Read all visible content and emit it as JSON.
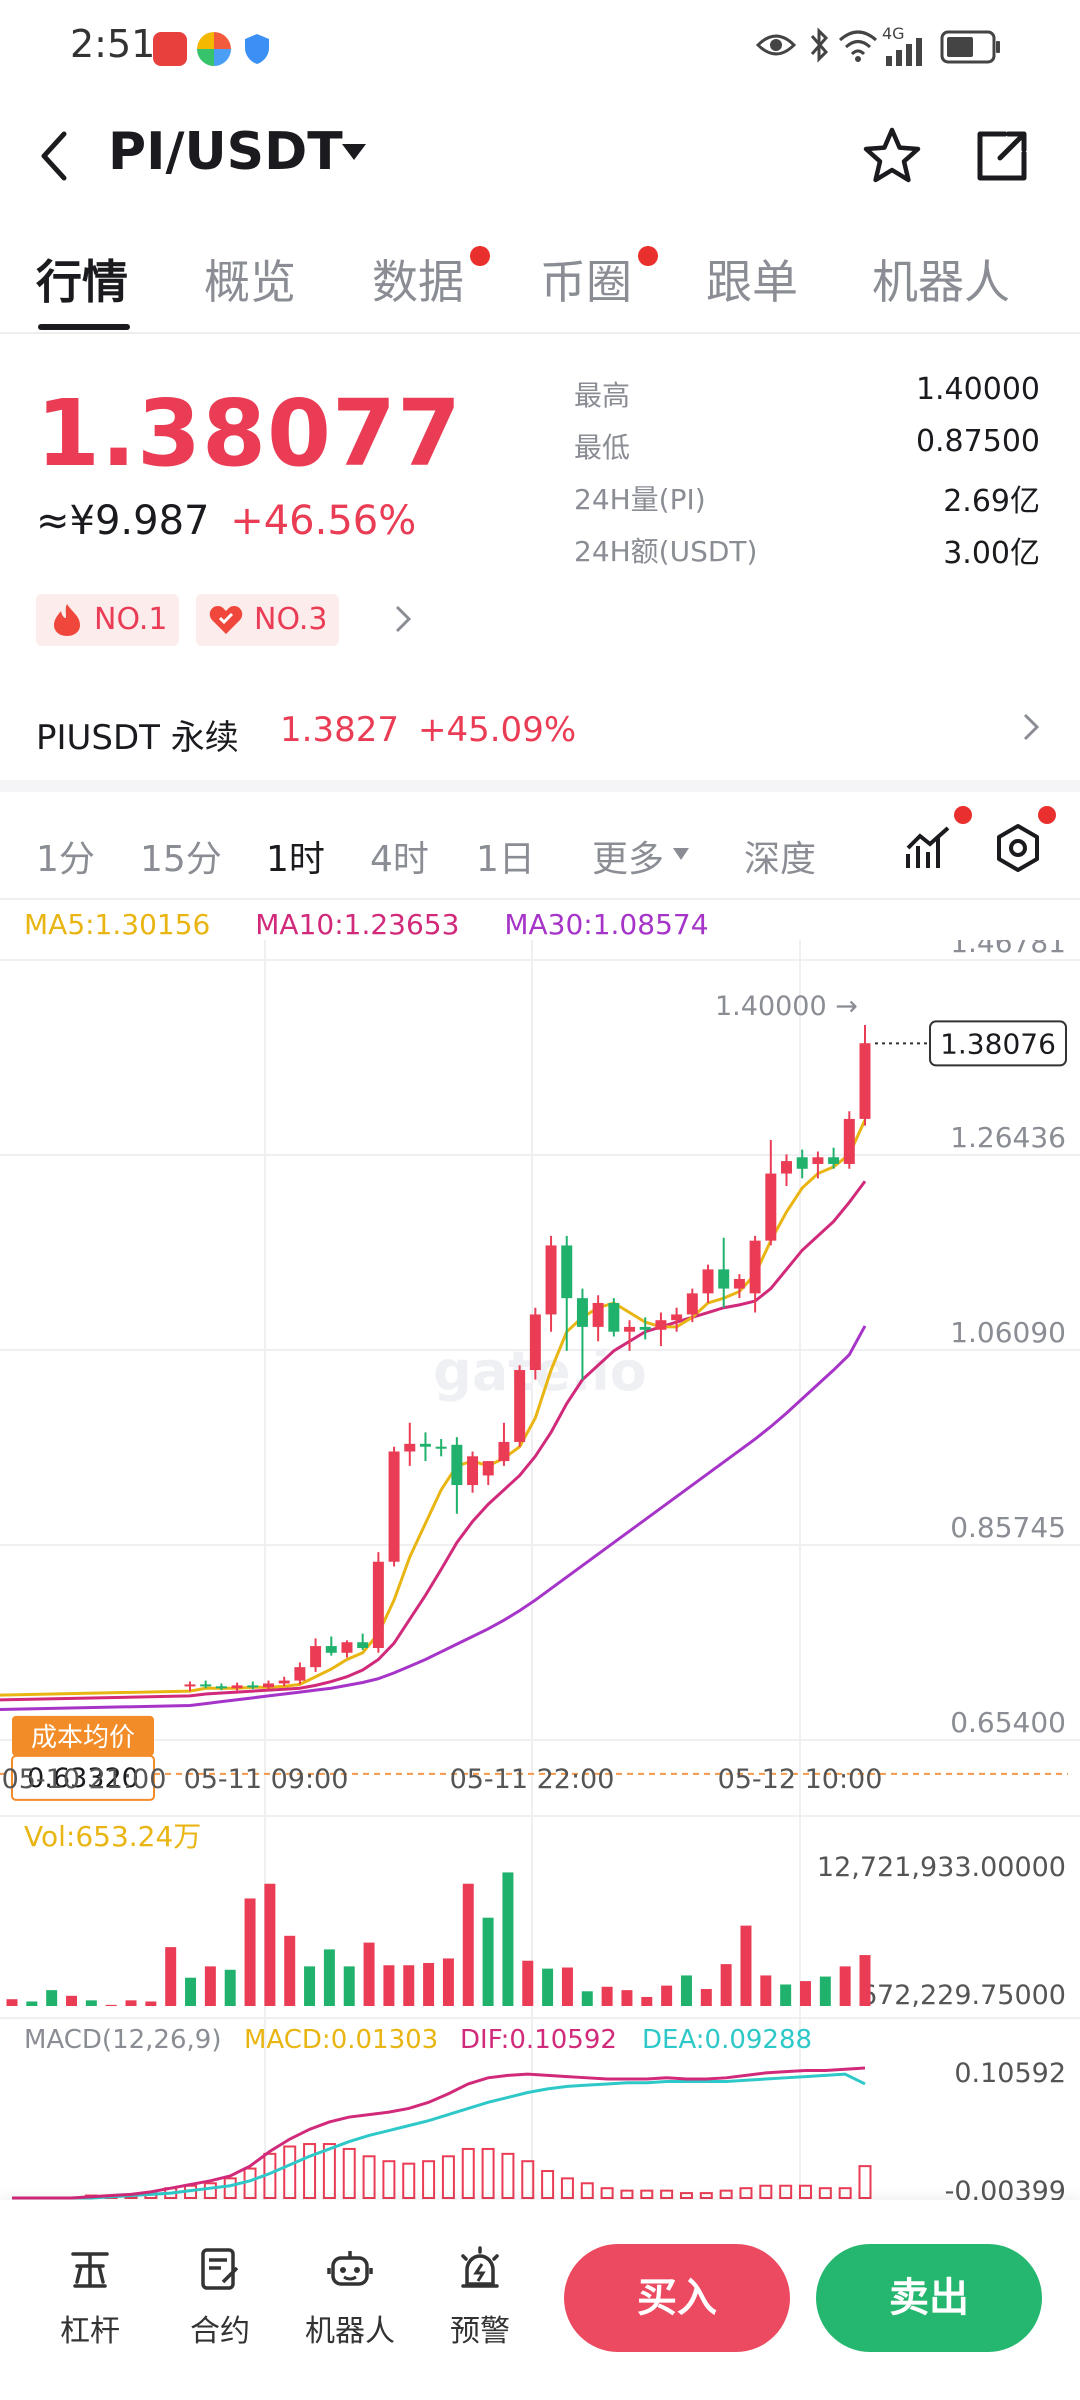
{
  "status_bar": {
    "time": "2:51",
    "network": "4G"
  },
  "header": {
    "pair": "PI/USDT"
  },
  "tabs": [
    {
      "label": "行情",
      "active": true,
      "dot": false
    },
    {
      "label": "概览",
      "active": false,
      "dot": false
    },
    {
      "label": "数据",
      "active": false,
      "dot": true
    },
    {
      "label": "币圈",
      "active": false,
      "dot": true
    },
    {
      "label": "跟单",
      "active": false,
      "dot": false
    },
    {
      "label": "机器人",
      "active": false,
      "dot": false
    }
  ],
  "price": {
    "last": "1.38077",
    "fiat": "≈¥9.987",
    "change": "+46.56%",
    "badges": [
      "NO.1",
      "NO.3"
    ]
  },
  "stats": [
    {
      "label": "最高",
      "value": "1.40000"
    },
    {
      "label": "最低",
      "value": "0.87500"
    },
    {
      "label": "24H量(PI)",
      "value": "2.69亿"
    },
    {
      "label": "24H额(USDT)",
      "value": "3.00亿"
    }
  ],
  "perpetual": {
    "name": "PIUSDT 永续",
    "price": "1.3827",
    "change": "+45.09%"
  },
  "intervals": [
    {
      "label": "1分",
      "active": false
    },
    {
      "label": "15分",
      "active": false
    },
    {
      "label": "1时",
      "active": true
    },
    {
      "label": "4时",
      "active": false
    },
    {
      "label": "1日",
      "active": false
    },
    {
      "label": "更多",
      "active": false
    },
    {
      "label": "深度",
      "active": false
    }
  ],
  "ma_legend": {
    "ma5": "MA5:1.30156",
    "ma10": "MA10:1.23653",
    "ma30": "MA30:1.08574"
  },
  "colors": {
    "up": "#ea3d55",
    "down": "#20b26c",
    "ma5": "#e9b513",
    "ma10": "#d12a7a",
    "ma30": "#a634c8",
    "dif": "#d12a7a",
    "dea": "#2ec8c8"
  },
  "chart_data": {
    "type": "candlestick",
    "interval": "1时",
    "ylim": [
      0.654,
      1.46781
    ],
    "y_ticks": [
      "1.46781",
      "1.26436",
      "1.06090",
      "0.85745",
      "0.65400"
    ],
    "x_ticks": [
      "05-10 21:00",
      "05-11 09:00",
      "05-11 22:00",
      "05-12 10:00"
    ],
    "high_marker": "1.40000",
    "last_price_tag": "1.38076",
    "cost_label": "成本均价",
    "cost_value": "0.63320",
    "cost_partial": "76",
    "watermark": "gate.io",
    "candles": [
      {
        "o": 0.71,
        "h": 0.715,
        "l": 0.705,
        "c": 0.712
      },
      {
        "o": 0.712,
        "h": 0.716,
        "l": 0.708,
        "c": 0.71
      },
      {
        "o": 0.71,
        "h": 0.713,
        "l": 0.706,
        "c": 0.708
      },
      {
        "o": 0.708,
        "h": 0.714,
        "l": 0.705,
        "c": 0.711
      },
      {
        "o": 0.711,
        "h": 0.715,
        "l": 0.707,
        "c": 0.709
      },
      {
        "o": 0.709,
        "h": 0.716,
        "l": 0.706,
        "c": 0.713
      },
      {
        "o": 0.713,
        "h": 0.72,
        "l": 0.71,
        "c": 0.716
      },
      {
        "o": 0.716,
        "h": 0.735,
        "l": 0.712,
        "c": 0.73
      },
      {
        "o": 0.73,
        "h": 0.76,
        "l": 0.725,
        "c": 0.752
      },
      {
        "o": 0.752,
        "h": 0.762,
        "l": 0.742,
        "c": 0.745
      },
      {
        "o": 0.745,
        "h": 0.758,
        "l": 0.74,
        "c": 0.756
      },
      {
        "o": 0.756,
        "h": 0.765,
        "l": 0.748,
        "c": 0.75
      },
      {
        "o": 0.75,
        "h": 0.85,
        "l": 0.745,
        "c": 0.84
      },
      {
        "o": 0.84,
        "h": 0.96,
        "l": 0.835,
        "c": 0.955
      },
      {
        "o": 0.955,
        "h": 0.985,
        "l": 0.94,
        "c": 0.963
      },
      {
        "o": 0.963,
        "h": 0.975,
        "l": 0.945,
        "c": 0.96
      },
      {
        "o": 0.96,
        "h": 0.968,
        "l": 0.95,
        "c": 0.958
      },
      {
        "o": 0.962,
        "h": 0.97,
        "l": 0.89,
        "c": 0.92
      },
      {
        "o": 0.92,
        "h": 0.955,
        "l": 0.912,
        "c": 0.95
      },
      {
        "o": 0.93,
        "h": 0.945,
        "l": 0.92,
        "c": 0.945
      },
      {
        "o": 0.945,
        "h": 0.985,
        "l": 0.94,
        "c": 0.965
      },
      {
        "o": 0.965,
        "h": 1.045,
        "l": 0.96,
        "c": 1.04
      },
      {
        "o": 1.04,
        "h": 1.105,
        "l": 1.03,
        "c": 1.098
      },
      {
        "o": 1.098,
        "h": 1.18,
        "l": 1.08,
        "c": 1.17
      },
      {
        "o": 1.17,
        "h": 1.18,
        "l": 1.06,
        "c": 1.115
      },
      {
        "o": 1.115,
        "h": 1.125,
        "l": 1.03,
        "c": 1.085
      },
      {
        "o": 1.085,
        "h": 1.118,
        "l": 1.07,
        "c": 1.11
      },
      {
        "o": 1.11,
        "h": 1.115,
        "l": 1.075,
        "c": 1.08
      },
      {
        "o": 1.08,
        "h": 1.092,
        "l": 1.06,
        "c": 1.085
      },
      {
        "o": 1.085,
        "h": 1.095,
        "l": 1.072,
        "c": 1.082
      },
      {
        "o": 1.082,
        "h": 1.1,
        "l": 1.065,
        "c": 1.092
      },
      {
        "o": 1.092,
        "h": 1.105,
        "l": 1.08,
        "c": 1.098
      },
      {
        "o": 1.098,
        "h": 1.125,
        "l": 1.09,
        "c": 1.12
      },
      {
        "o": 1.12,
        "h": 1.15,
        "l": 1.11,
        "c": 1.145
      },
      {
        "o": 1.145,
        "h": 1.178,
        "l": 1.105,
        "c": 1.125
      },
      {
        "o": 1.125,
        "h": 1.14,
        "l": 1.115,
        "c": 1.135
      },
      {
        "o": 1.12,
        "h": 1.18,
        "l": 1.1,
        "c": 1.175
      },
      {
        "o": 1.175,
        "h": 1.28,
        "l": 1.17,
        "c": 1.245
      },
      {
        "o": 1.245,
        "h": 1.265,
        "l": 1.232,
        "c": 1.258
      },
      {
        "o": 1.262,
        "h": 1.27,
        "l": 1.24,
        "c": 1.25
      },
      {
        "o": 1.255,
        "h": 1.268,
        "l": 1.24,
        "c": 1.262
      },
      {
        "o": 1.262,
        "h": 1.272,
        "l": 1.25,
        "c": 1.255
      },
      {
        "o": 1.255,
        "h": 1.31,
        "l": 1.25,
        "c": 1.302
      },
      {
        "o": 1.302,
        "h": 1.4,
        "l": 1.295,
        "c": 1.381
      }
    ],
    "ma5_points": [
      0.705,
      0.708,
      0.708,
      0.708,
      0.709,
      0.709,
      0.71,
      0.712,
      0.72,
      0.728,
      0.738,
      0.745,
      0.765,
      0.8,
      0.845,
      0.88,
      0.915,
      0.94,
      0.945,
      0.94,
      0.948,
      0.96,
      0.99,
      1.04,
      1.08,
      1.095,
      1.105,
      1.11,
      1.1,
      1.09,
      1.085,
      1.085,
      1.095,
      1.11,
      1.115,
      1.122,
      1.14,
      1.175,
      1.205,
      1.23,
      1.245,
      1.252,
      1.265,
      1.301
    ],
    "ma10_points": [
      0.7,
      0.702,
      0.703,
      0.704,
      0.705,
      0.706,
      0.707,
      0.708,
      0.711,
      0.715,
      0.72,
      0.727,
      0.738,
      0.755,
      0.78,
      0.805,
      0.832,
      0.86,
      0.882,
      0.9,
      0.915,
      0.93,
      0.95,
      0.975,
      1.005,
      1.03,
      1.045,
      1.06,
      1.07,
      1.08,
      1.085,
      1.09,
      1.095,
      1.1,
      1.105,
      1.108,
      1.112,
      1.125,
      1.145,
      1.165,
      1.18,
      1.195,
      1.215,
      1.237
    ],
    "ma30_points": [
      0.69,
      0.692,
      0.694,
      0.696,
      0.698,
      0.7,
      0.702,
      0.704,
      0.706,
      0.708,
      0.711,
      0.714,
      0.718,
      0.724,
      0.731,
      0.738,
      0.746,
      0.754,
      0.762,
      0.77,
      0.779,
      0.789,
      0.8,
      0.812,
      0.824,
      0.836,
      0.848,
      0.86,
      0.872,
      0.884,
      0.896,
      0.908,
      0.92,
      0.932,
      0.944,
      0.956,
      0.968,
      0.981,
      0.995,
      1.01,
      1.025,
      1.04,
      1.056,
      1.086
    ],
    "volume": {
      "label": "Vol:653.24万",
      "max_label": "12,721,933.00000",
      "min_label": "672,229.75000",
      "values": [
        0.6,
        0.4,
        1.4,
        0.9,
        0.5,
        0.1,
        0.5,
        0.4,
        5.2,
        2.5,
        3.5,
        3.2,
        9.5,
        10.8,
        6.2,
        3.5,
        5.0,
        3.5,
        5.6,
        3.6,
        3.6,
        3.8,
        4.2,
        10.8,
        7.8,
        11.8,
        4.0,
        3.3,
        3.4,
        1.3,
        1.7,
        1.4,
        0.8,
        1.8,
        2.7,
        1.5,
        3.7,
        7.1,
        2.7,
        1.9,
        2.2,
        2.6,
        3.5,
        4.5
      ]
    },
    "macd": {
      "label": "MACD(12,26,9)",
      "macd_value": "MACD:0.01303",
      "dif_value": "DIF:0.10592",
      "dea_value": "DEA:0.09288",
      "top_label": "0.10592",
      "bottom_label": "-0.00399",
      "dif": [
        0.0,
        0.0,
        0.0,
        0.0,
        0.001,
        0.002,
        0.003,
        0.005,
        0.008,
        0.011,
        0.014,
        0.018,
        0.026,
        0.038,
        0.048,
        0.056,
        0.062,
        0.066,
        0.068,
        0.07,
        0.073,
        0.078,
        0.085,
        0.093,
        0.098,
        0.1,
        0.101,
        0.1,
        0.099,
        0.098,
        0.097,
        0.097,
        0.097,
        0.098,
        0.097,
        0.097,
        0.098,
        0.1,
        0.102,
        0.103,
        0.104,
        0.104,
        0.105,
        0.106
      ],
      "dea": [
        0.0,
        0.0,
        0.0,
        0.0,
        0.0,
        0.001,
        0.002,
        0.003,
        0.004,
        0.006,
        0.008,
        0.01,
        0.014,
        0.02,
        0.027,
        0.034,
        0.04,
        0.046,
        0.051,
        0.055,
        0.059,
        0.063,
        0.068,
        0.073,
        0.078,
        0.082,
        0.086,
        0.089,
        0.091,
        0.092,
        0.093,
        0.094,
        0.094,
        0.095,
        0.095,
        0.095,
        0.095,
        0.096,
        0.097,
        0.098,
        0.099,
        0.1,
        0.101,
        0.093
      ]
    }
  },
  "bottom_nav": [
    {
      "label": "杠杆",
      "icon": "leverage-icon"
    },
    {
      "label": "合约",
      "icon": "contract-icon"
    },
    {
      "label": "机器人",
      "icon": "robot-icon"
    },
    {
      "label": "预警",
      "icon": "alert-icon"
    }
  ],
  "actions": {
    "buy": "买入",
    "sell": "卖出"
  }
}
